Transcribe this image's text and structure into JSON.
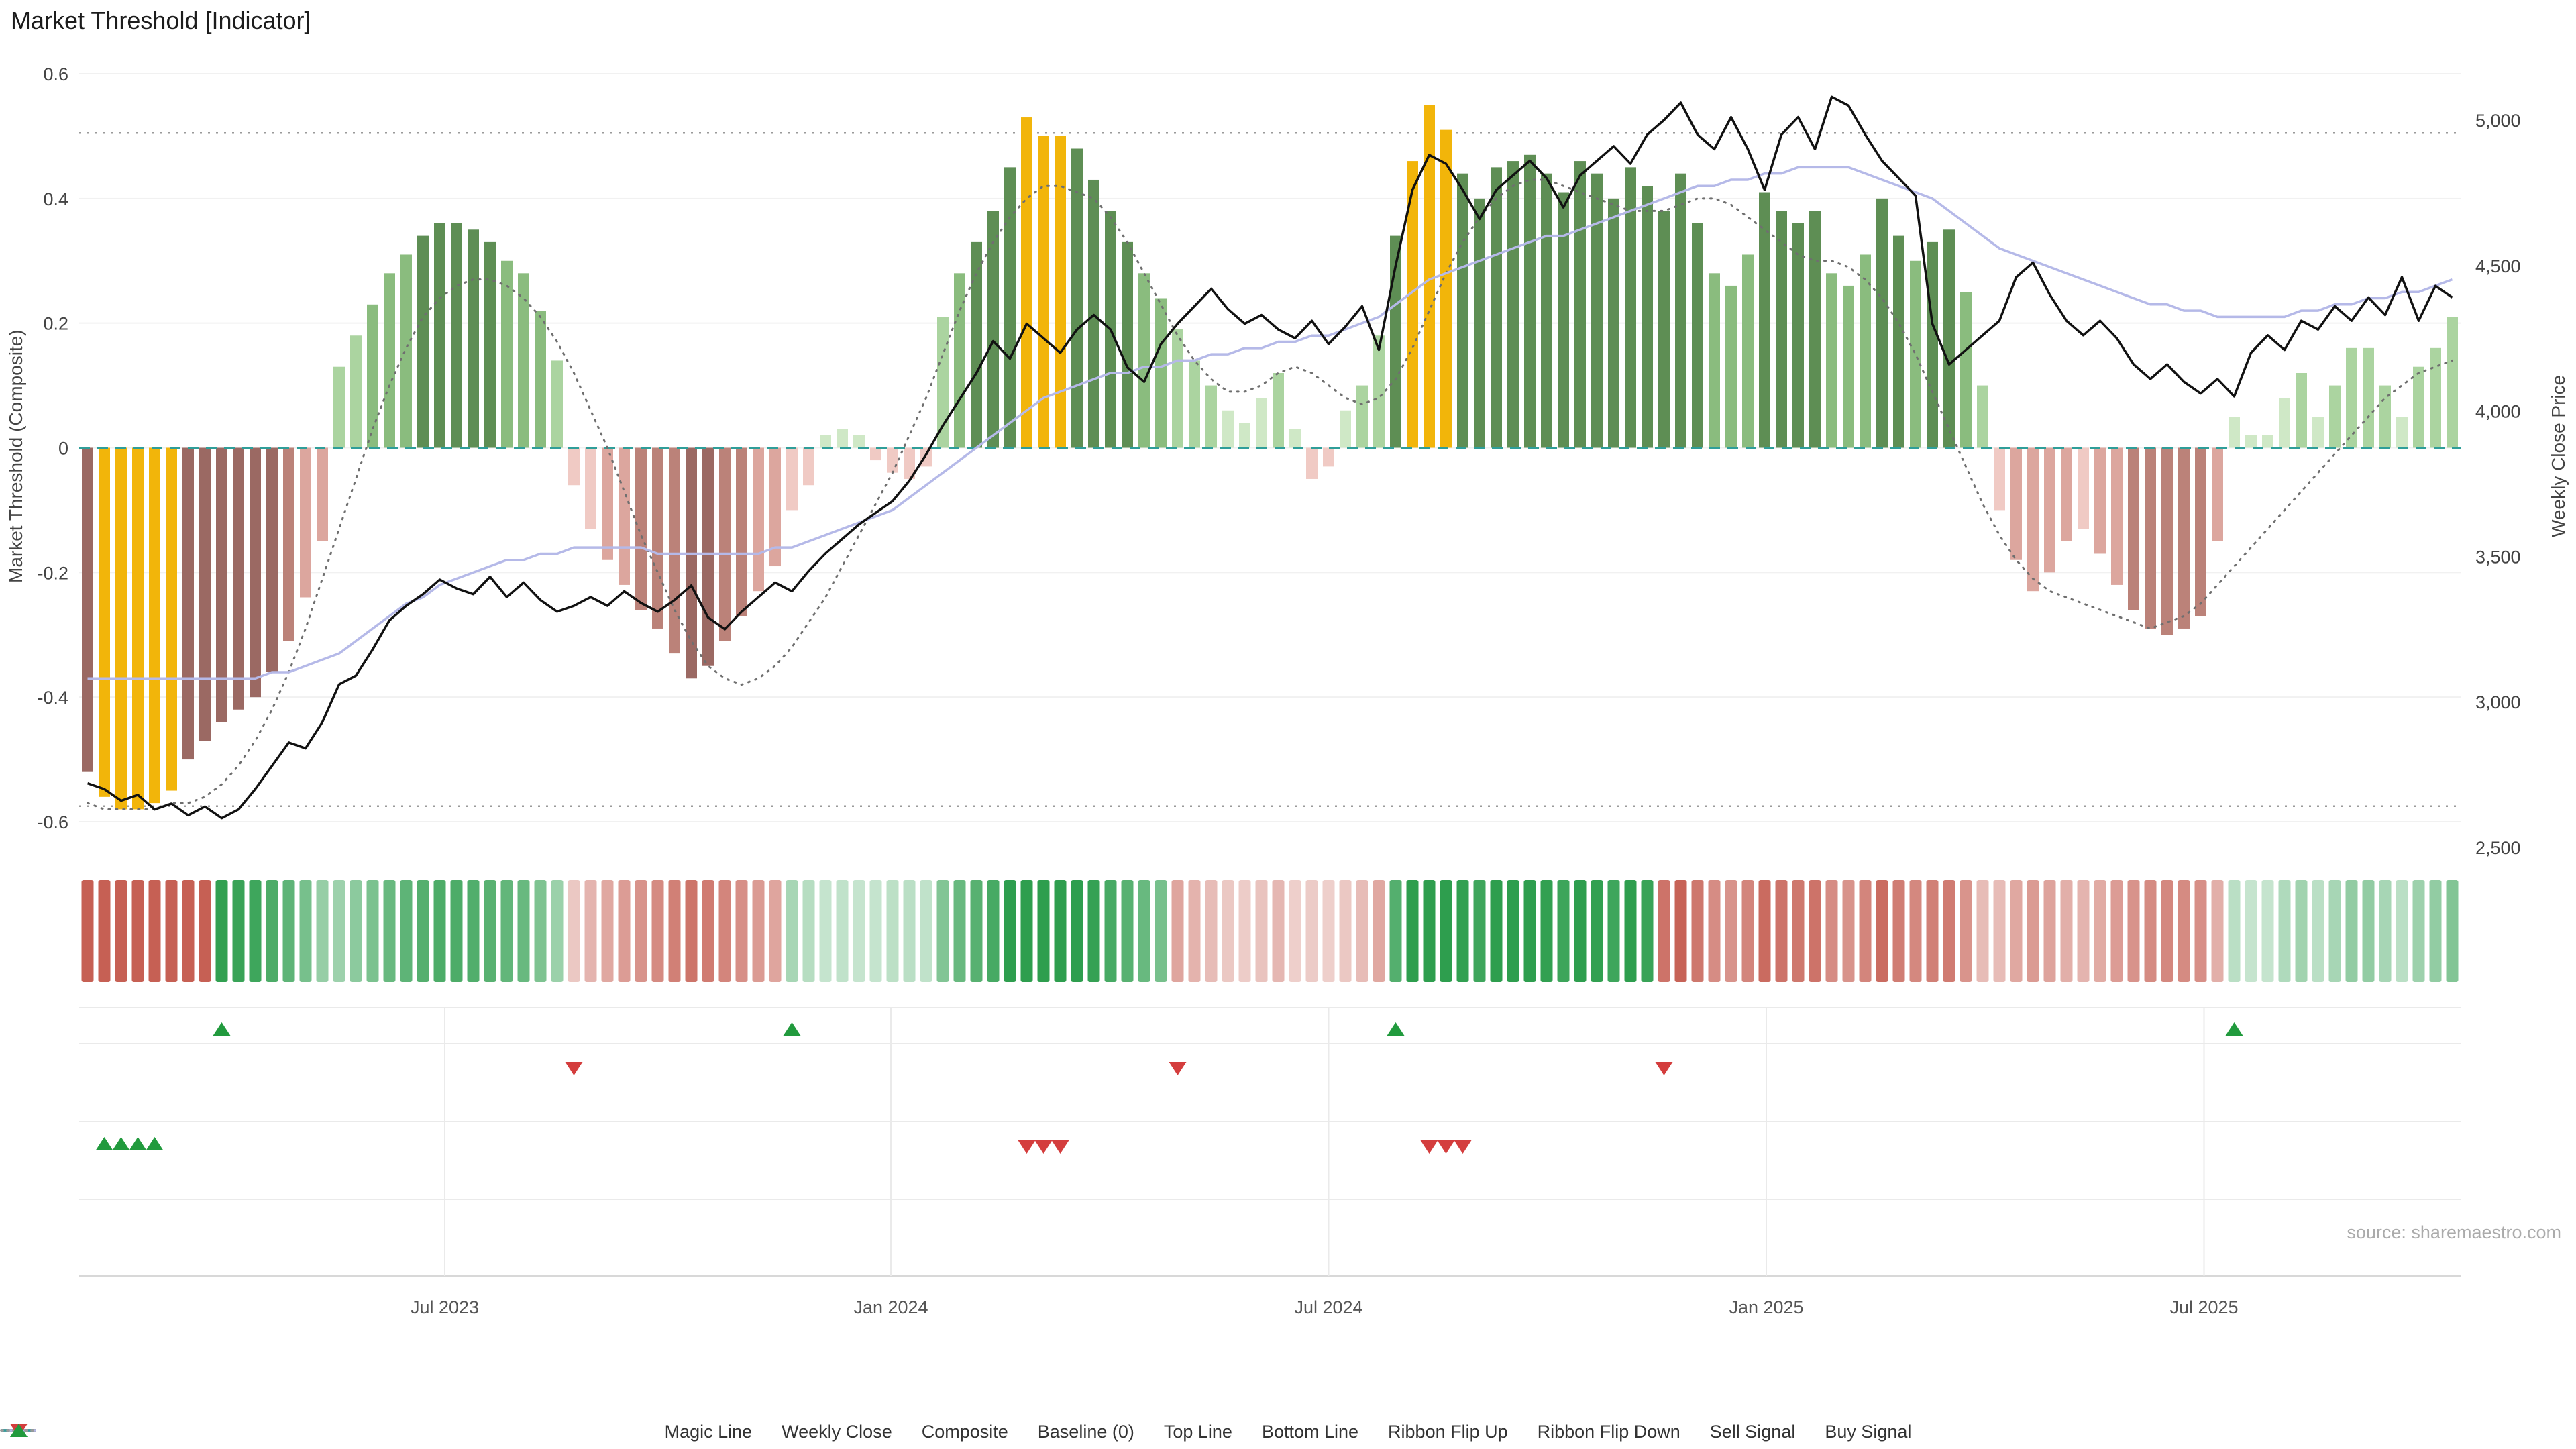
{
  "page": {
    "title": "Market Threshold [Indicator]",
    "source": "source: sharemaestro.com"
  },
  "axes": {
    "left_title": "Market Threshold (Composite)",
    "right_title": "Weekly Close Price",
    "left_ticks": {
      "values": [
        0.6,
        0.4,
        0.2,
        0,
        -0.2,
        -0.4,
        -0.6
      ],
      "labels": [
        "0.6",
        "0.4",
        "0.2",
        "0",
        "-0.2",
        "-0.4",
        "-0.6"
      ]
    },
    "right_ticks": {
      "values": [
        5000,
        4500,
        4000,
        3500,
        3000,
        2500
      ],
      "labels": [
        "5,000",
        "4,500",
        "4,000",
        "3,500",
        "3,000",
        "2,500"
      ]
    },
    "x_ticks": {
      "positions": [
        21.3,
        47.9,
        74.0,
        100.1,
        126.2
      ],
      "labels": [
        "Jul 2023",
        "Jan 2024",
        "Jul 2024",
        "Jan 2025",
        "Jul 2025"
      ]
    }
  },
  "legend": {
    "items": [
      {
        "label": "Magic Line",
        "swatch": "dotted",
        "color": "#6f6f6f"
      },
      {
        "label": "Weekly Close",
        "swatch": "solid",
        "color": "#111111"
      },
      {
        "label": "Composite",
        "swatch": "solid",
        "color": "#b5b9e8"
      },
      {
        "label": "Baseline (0)",
        "swatch": "dashed",
        "color": "#2f9e99"
      },
      {
        "label": "Top Line",
        "swatch": "dotted",
        "color": "#9a9a9a"
      },
      {
        "label": "Bottom Line",
        "swatch": "dotted",
        "color": "#9a9a9a"
      },
      {
        "label": "Ribbon Flip Up",
        "swatch": "tri-up",
        "color": "#219a3d"
      },
      {
        "label": "Ribbon Flip Down",
        "swatch": "tri-down",
        "color": "#d43d3d"
      },
      {
        "label": "Sell Signal",
        "swatch": "tri-down",
        "color": "#d43d3d"
      },
      {
        "label": "Buy Signal",
        "swatch": "tri-up",
        "color": "#219a3d"
      }
    ]
  },
  "colors": {
    "bar_green_strong": "#5e8e54",
    "bar_green_mid": "#8abc7e",
    "bar_green_light": "#abd4a0",
    "bar_green_faint": "#cfe8c6",
    "bar_red_strong": "#9b6963",
    "bar_red_mid": "#bb8279",
    "bar_red_light": "#dca69e",
    "bar_red_faint": "#f0cac4",
    "bar_signal": "#f2b50a",
    "weekly_close": "#111111",
    "composite": "#b5b9e8",
    "magic": "#6f6f6f",
    "baseline": "#2f9e99",
    "top_bottom": "#9a9a9a",
    "flip_up": "#219a3d",
    "flip_down": "#d43d3d",
    "sell": "#d43d3d",
    "buy": "#219a3d",
    "ribbon_green": "#2e9e4e",
    "ribbon_red": "#c66054",
    "grid": "#f1f1f1",
    "signal_grid": "#eaeaea",
    "axis_text": "#444444",
    "x_text": "#555555"
  },
  "chart_data": {
    "type": "mixed",
    "x_unit": "week",
    "n_points": 142,
    "left_axis_range": [
      -0.6,
      0.6
    ],
    "right_axis_range": [
      2500,
      5000
    ],
    "top_line": 0.505,
    "bottom_line": -0.575,
    "baseline": 0,
    "signal_weeks": [
      1,
      2,
      3,
      4,
      5,
      56,
      57,
      58,
      79,
      80,
      81
    ],
    "markers": {
      "ribbon_flip_up": [
        8,
        42,
        78,
        128
      ],
      "ribbon_flip_down": [
        29,
        65,
        94
      ],
      "sell_signal": [
        56,
        57,
        58,
        80,
        81,
        82
      ],
      "buy_signal": [
        1,
        2,
        3,
        4
      ]
    },
    "series": {
      "threshold": [
        -0.52,
        -0.56,
        -0.58,
        -0.58,
        -0.57,
        -0.55,
        -0.5,
        -0.47,
        -0.44,
        -0.42,
        -0.4,
        -0.36,
        -0.31,
        -0.24,
        -0.15,
        0.13,
        0.18,
        0.23,
        0.28,
        0.31,
        0.34,
        0.36,
        0.36,
        0.35,
        0.33,
        0.3,
        0.28,
        0.22,
        0.14,
        -0.06,
        -0.13,
        -0.18,
        -0.22,
        -0.26,
        -0.29,
        -0.33,
        -0.37,
        -0.35,
        -0.31,
        -0.27,
        -0.23,
        -0.19,
        -0.1,
        -0.06,
        0.02,
        0.03,
        0.02,
        -0.02,
        -0.04,
        -0.05,
        -0.03,
        0.21,
        0.28,
        0.33,
        0.38,
        0.45,
        0.53,
        0.5,
        0.5,
        0.48,
        0.43,
        0.38,
        0.33,
        0.28,
        0.24,
        0.19,
        0.14,
        0.1,
        0.06,
        0.04,
        0.08,
        0.12,
        0.03,
        -0.05,
        -0.03,
        0.06,
        0.1,
        0.18,
        0.34,
        0.46,
        0.55,
        0.51,
        0.44,
        0.4,
        0.45,
        0.46,
        0.47,
        0.44,
        0.41,
        0.46,
        0.44,
        0.4,
        0.45,
        0.42,
        0.38,
        0.44,
        0.36,
        0.28,
        0.26,
        0.31,
        0.41,
        0.38,
        0.36,
        0.38,
        0.28,
        0.26,
        0.31,
        0.4,
        0.34,
        0.3,
        0.33,
        0.35,
        0.25,
        0.1,
        -0.1,
        -0.18,
        -0.23,
        -0.2,
        -0.15,
        -0.13,
        -0.17,
        -0.22,
        -0.26,
        -0.29,
        -0.3,
        -0.29,
        -0.27,
        -0.15,
        0.05,
        0.02,
        0.02,
        0.08,
        0.12,
        0.05,
        0.1,
        0.16,
        0.16,
        0.1,
        0.05,
        0.13,
        0.16,
        0.21
      ],
      "weekly_close": [
        2720,
        2700,
        2660,
        2680,
        2630,
        2650,
        2610,
        2640,
        2600,
        2630,
        2700,
        2780,
        2860,
        2840,
        2930,
        3060,
        3090,
        3180,
        3280,
        3330,
        3370,
        3420,
        3390,
        3370,
        3430,
        3360,
        3410,
        3350,
        3310,
        3330,
        3360,
        3330,
        3380,
        3340,
        3310,
        3350,
        3400,
        3290,
        3250,
        3310,
        3360,
        3410,
        3380,
        3450,
        3510,
        3560,
        3610,
        3650,
        3690,
        3760,
        3850,
        3950,
        4040,
        4130,
        4240,
        4180,
        4300,
        4250,
        4200,
        4280,
        4330,
        4280,
        4150,
        4100,
        4230,
        4300,
        4360,
        4420,
        4350,
        4300,
        4330,
        4280,
        4250,
        4310,
        4230,
        4290,
        4360,
        4210,
        4500,
        4760,
        4880,
        4850,
        4760,
        4660,
        4760,
        4810,
        4860,
        4800,
        4700,
        4810,
        4860,
        4910,
        4850,
        4950,
        5000,
        5060,
        4950,
        4900,
        5010,
        4900,
        4760,
        4950,
        5010,
        4900,
        5080,
        5050,
        4950,
        4860,
        4800,
        4740,
        4300,
        4160,
        4210,
        4260,
        4310,
        4460,
        4510,
        4400,
        4310,
        4260,
        4310,
        4250,
        4160,
        4110,
        4160,
        4100,
        4060,
        4110,
        4050,
        4200,
        4260,
        4210,
        4310,
        4280,
        4360,
        4310,
        4390,
        4330,
        4460,
        4310,
        4430,
        4390
      ],
      "composite": [
        -0.37,
        -0.37,
        -0.37,
        -0.37,
        -0.37,
        -0.37,
        -0.37,
        -0.37,
        -0.37,
        -0.37,
        -0.37,
        -0.36,
        -0.36,
        -0.35,
        -0.34,
        -0.33,
        -0.31,
        -0.29,
        -0.27,
        -0.25,
        -0.24,
        -0.22,
        -0.21,
        -0.2,
        -0.19,
        -0.18,
        -0.18,
        -0.17,
        -0.17,
        -0.16,
        -0.16,
        -0.16,
        -0.16,
        -0.16,
        -0.17,
        -0.17,
        -0.17,
        -0.17,
        -0.17,
        -0.17,
        -0.17,
        -0.16,
        -0.16,
        -0.15,
        -0.14,
        -0.13,
        -0.12,
        -0.11,
        -0.1,
        -0.08,
        -0.06,
        -0.04,
        -0.02,
        0.0,
        0.02,
        0.04,
        0.06,
        0.08,
        0.09,
        0.1,
        0.11,
        0.12,
        0.12,
        0.13,
        0.13,
        0.14,
        0.14,
        0.15,
        0.15,
        0.16,
        0.16,
        0.17,
        0.17,
        0.18,
        0.18,
        0.19,
        0.2,
        0.21,
        0.23,
        0.25,
        0.27,
        0.28,
        0.29,
        0.3,
        0.31,
        0.32,
        0.33,
        0.34,
        0.34,
        0.35,
        0.36,
        0.37,
        0.38,
        0.39,
        0.4,
        0.41,
        0.42,
        0.42,
        0.43,
        0.43,
        0.44,
        0.44,
        0.45,
        0.45,
        0.45,
        0.45,
        0.44,
        0.43,
        0.42,
        0.41,
        0.4,
        0.38,
        0.36,
        0.34,
        0.32,
        0.31,
        0.3,
        0.29,
        0.28,
        0.27,
        0.26,
        0.25,
        0.24,
        0.23,
        0.23,
        0.22,
        0.22,
        0.21,
        0.21,
        0.21,
        0.21,
        0.21,
        0.22,
        0.22,
        0.23,
        0.23,
        0.24,
        0.24,
        0.25,
        0.25,
        0.26,
        0.27
      ],
      "magic_line": [
        -0.57,
        -0.58,
        -0.58,
        -0.58,
        -0.58,
        -0.57,
        -0.57,
        -0.56,
        -0.54,
        -0.51,
        -0.47,
        -0.42,
        -0.36,
        -0.29,
        -0.21,
        -0.13,
        -0.05,
        0.03,
        0.1,
        0.16,
        0.21,
        0.24,
        0.26,
        0.27,
        0.27,
        0.26,
        0.24,
        0.21,
        0.17,
        0.12,
        0.06,
        0.0,
        -0.07,
        -0.14,
        -0.2,
        -0.26,
        -0.31,
        -0.35,
        -0.37,
        -0.38,
        -0.37,
        -0.35,
        -0.32,
        -0.28,
        -0.24,
        -0.19,
        -0.14,
        -0.09,
        -0.04,
        0.02,
        0.08,
        0.15,
        0.22,
        0.28,
        0.33,
        0.37,
        0.4,
        0.42,
        0.42,
        0.41,
        0.4,
        0.37,
        0.33,
        0.28,
        0.23,
        0.18,
        0.14,
        0.11,
        0.09,
        0.09,
        0.1,
        0.12,
        0.13,
        0.12,
        0.1,
        0.08,
        0.07,
        0.08,
        0.11,
        0.16,
        0.22,
        0.28,
        0.33,
        0.37,
        0.4,
        0.42,
        0.43,
        0.43,
        0.42,
        0.41,
        0.4,
        0.39,
        0.38,
        0.38,
        0.38,
        0.39,
        0.4,
        0.4,
        0.39,
        0.37,
        0.35,
        0.33,
        0.31,
        0.3,
        0.3,
        0.29,
        0.27,
        0.24,
        0.2,
        0.15,
        0.09,
        0.03,
        -0.03,
        -0.09,
        -0.14,
        -0.18,
        -0.21,
        -0.23,
        -0.24,
        -0.25,
        -0.26,
        -0.27,
        -0.28,
        -0.29,
        -0.28,
        -0.27,
        -0.25,
        -0.22,
        -0.19,
        -0.16,
        -0.13,
        -0.1,
        -0.07,
        -0.04,
        -0.01,
        0.02,
        0.05,
        0.08,
        0.1,
        0.12,
        0.13,
        0.14
      ]
    }
  }
}
